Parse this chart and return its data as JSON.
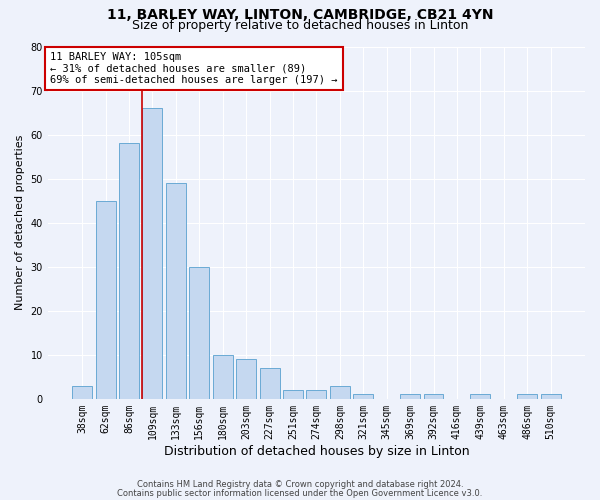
{
  "title1": "11, BARLEY WAY, LINTON, CAMBRIDGE, CB21 4YN",
  "title2": "Size of property relative to detached houses in Linton",
  "xlabel": "Distribution of detached houses by size in Linton",
  "ylabel": "Number of detached properties",
  "footnote1": "Contains HM Land Registry data © Crown copyright and database right 2024.",
  "footnote2": "Contains public sector information licensed under the Open Government Licence v3.0.",
  "bar_labels": [
    "38sqm",
    "62sqm",
    "86sqm",
    "109sqm",
    "133sqm",
    "156sqm",
    "180sqm",
    "203sqm",
    "227sqm",
    "251sqm",
    "274sqm",
    "298sqm",
    "321sqm",
    "345sqm",
    "369sqm",
    "392sqm",
    "416sqm",
    "439sqm",
    "463sqm",
    "486sqm",
    "510sqm"
  ],
  "bar_values": [
    3,
    45,
    58,
    66,
    49,
    30,
    10,
    9,
    7,
    2,
    2,
    3,
    1,
    0,
    1,
    1,
    0,
    1,
    0,
    1,
    1
  ],
  "bar_color": "#c5d8f0",
  "bar_edge_color": "#6aaad4",
  "vline_x": 2.575,
  "vline_color": "#cc0000",
  "annotation_line1": "11 BARLEY WAY: 105sqm",
  "annotation_line2": "← 31% of detached houses are smaller (89)",
  "annotation_line3": "69% of semi-detached houses are larger (197) →",
  "annotation_box_color": "#ffffff",
  "annotation_box_edge": "#cc0000",
  "ylim": [
    0,
    80
  ],
  "yticks": [
    0,
    10,
    20,
    30,
    40,
    50,
    60,
    70,
    80
  ],
  "bg_color": "#eef2fb",
  "grid_color": "#ffffff",
  "title1_fontsize": 10,
  "title2_fontsize": 9,
  "xlabel_fontsize": 9,
  "ylabel_fontsize": 8,
  "tick_fontsize": 7,
  "annotation_fontsize": 7.5,
  "footnote_fontsize": 6
}
